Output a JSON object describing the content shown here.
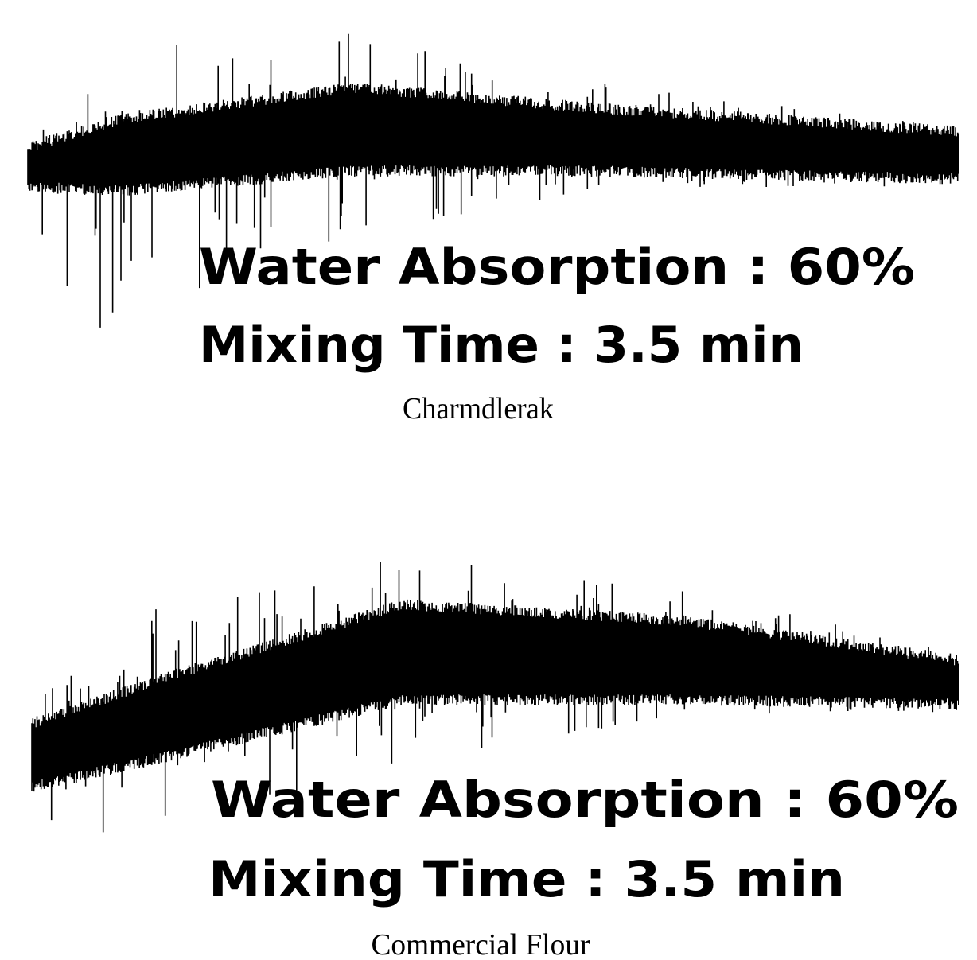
{
  "panels": [
    {
      "water_absorption": "Water Absorption : 60%",
      "mixing_time": "Mixing Time : 3.5 min",
      "caption": "Charmdlerak"
    },
    {
      "water_absorption": "Water Absorption : 60%",
      "mixing_time": "Mixing Time : 3.5 min",
      "caption": "Commercial Flour"
    }
  ]
}
